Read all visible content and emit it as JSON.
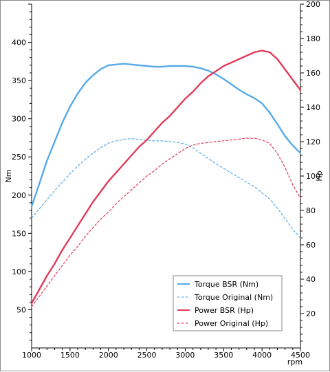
{
  "chart_data": {
    "type": "line",
    "ylabel": "Nm",
    "y2label": "Hp",
    "xunit": "rpm",
    "xlim": [
      1000,
      4500
    ],
    "ylim": [
      0,
      450
    ],
    "y2lim": [
      0,
      200
    ],
    "xticks": [
      1000,
      1500,
      2000,
      2500,
      3000,
      3500,
      4000,
      4500
    ],
    "yticks": [
      50,
      100,
      150,
      200,
      250,
      300,
      350,
      400
    ],
    "y2ticks": [
      20,
      40,
      60,
      80,
      100,
      120,
      140,
      160,
      180,
      200
    ],
    "grid": false,
    "legend_position": "bottom-right",
    "series": [
      {
        "name": "Torque BSR (Nm)",
        "axis": "left",
        "style": "solid",
        "color": "#56aaea",
        "x": [
          1000,
          1100,
          1200,
          1300,
          1400,
          1500,
          1600,
          1700,
          1800,
          1900,
          2000,
          2100,
          2200,
          2300,
          2400,
          2500,
          2600,
          2700,
          2800,
          2900,
          3000,
          3100,
          3200,
          3300,
          3400,
          3500,
          3600,
          3700,
          3800,
          3900,
          4000,
          4100,
          4200,
          4300,
          4400,
          4500
        ],
        "values": [
          185,
          215,
          245,
          270,
          295,
          316,
          333,
          347,
          357,
          365,
          370,
          371,
          372,
          371,
          370,
          369,
          368,
          368,
          369,
          369,
          369,
          368,
          366,
          363,
          358,
          352,
          345,
          338,
          332,
          327,
          320,
          308,
          293,
          277,
          265,
          255
        ]
      },
      {
        "name": "Torque Original (Nm)",
        "axis": "left",
        "style": "dashed",
        "color": "#56aaea",
        "x": [
          1000,
          1100,
          1200,
          1300,
          1400,
          1500,
          1600,
          1700,
          1800,
          1900,
          2000,
          2100,
          2200,
          2300,
          2400,
          2500,
          2600,
          2700,
          2800,
          2900,
          3000,
          3100,
          3200,
          3300,
          3400,
          3500,
          3600,
          3700,
          3800,
          3900,
          4000,
          4100,
          4200,
          4300,
          4400,
          4500
        ],
        "values": [
          170,
          182,
          194,
          206,
          217,
          228,
          238,
          247,
          255,
          262,
          268,
          271,
          273,
          274,
          273,
          272,
          271,
          271,
          270,
          269,
          267,
          262,
          255,
          248,
          241,
          235,
          229,
          223,
          217,
          211,
          203,
          195,
          183,
          169,
          155,
          144
        ]
      },
      {
        "name": "Power BSR (Hp)",
        "axis": "right",
        "style": "solid",
        "color": "#e03a57",
        "x": [
          1000,
          1100,
          1200,
          1300,
          1400,
          1500,
          1600,
          1700,
          1800,
          1900,
          2000,
          2100,
          2200,
          2300,
          2400,
          2500,
          2600,
          2700,
          2800,
          2900,
          3000,
          3100,
          3200,
          3300,
          3400,
          3500,
          3600,
          3700,
          3800,
          3900,
          4000,
          4100,
          4200,
          4300,
          4400,
          4500
        ],
        "values": [
          26,
          34,
          42,
          49,
          57,
          64,
          71,
          78,
          85,
          91,
          97,
          102,
          107,
          112,
          117,
          121,
          126,
          131,
          135,
          140,
          145,
          149,
          154,
          158,
          161,
          164,
          166,
          168,
          170,
          172,
          173,
          172,
          168,
          162,
          156,
          150
        ]
      },
      {
        "name": "Power Original (Hp)",
        "axis": "right",
        "style": "dashed",
        "color": "#e03a57",
        "x": [
          1000,
          1100,
          1200,
          1300,
          1400,
          1500,
          1600,
          1700,
          1800,
          1900,
          2000,
          2100,
          2200,
          2300,
          2400,
          2500,
          2600,
          2700,
          2800,
          2900,
          3000,
          3100,
          3200,
          3300,
          3400,
          3500,
          3600,
          3700,
          3800,
          3900,
          4000,
          4100,
          4200,
          4300,
          4400,
          4500
        ],
        "values": [
          24,
          30,
          36,
          42,
          48,
          54,
          59,
          65,
          70,
          75,
          79,
          84,
          88,
          92,
          96,
          100,
          103,
          107,
          110,
          113,
          116,
          118,
          119,
          119.5,
          120,
          120.5,
          121,
          121.5,
          122,
          122,
          121,
          119,
          113,
          105,
          95,
          87
        ]
      }
    ]
  }
}
